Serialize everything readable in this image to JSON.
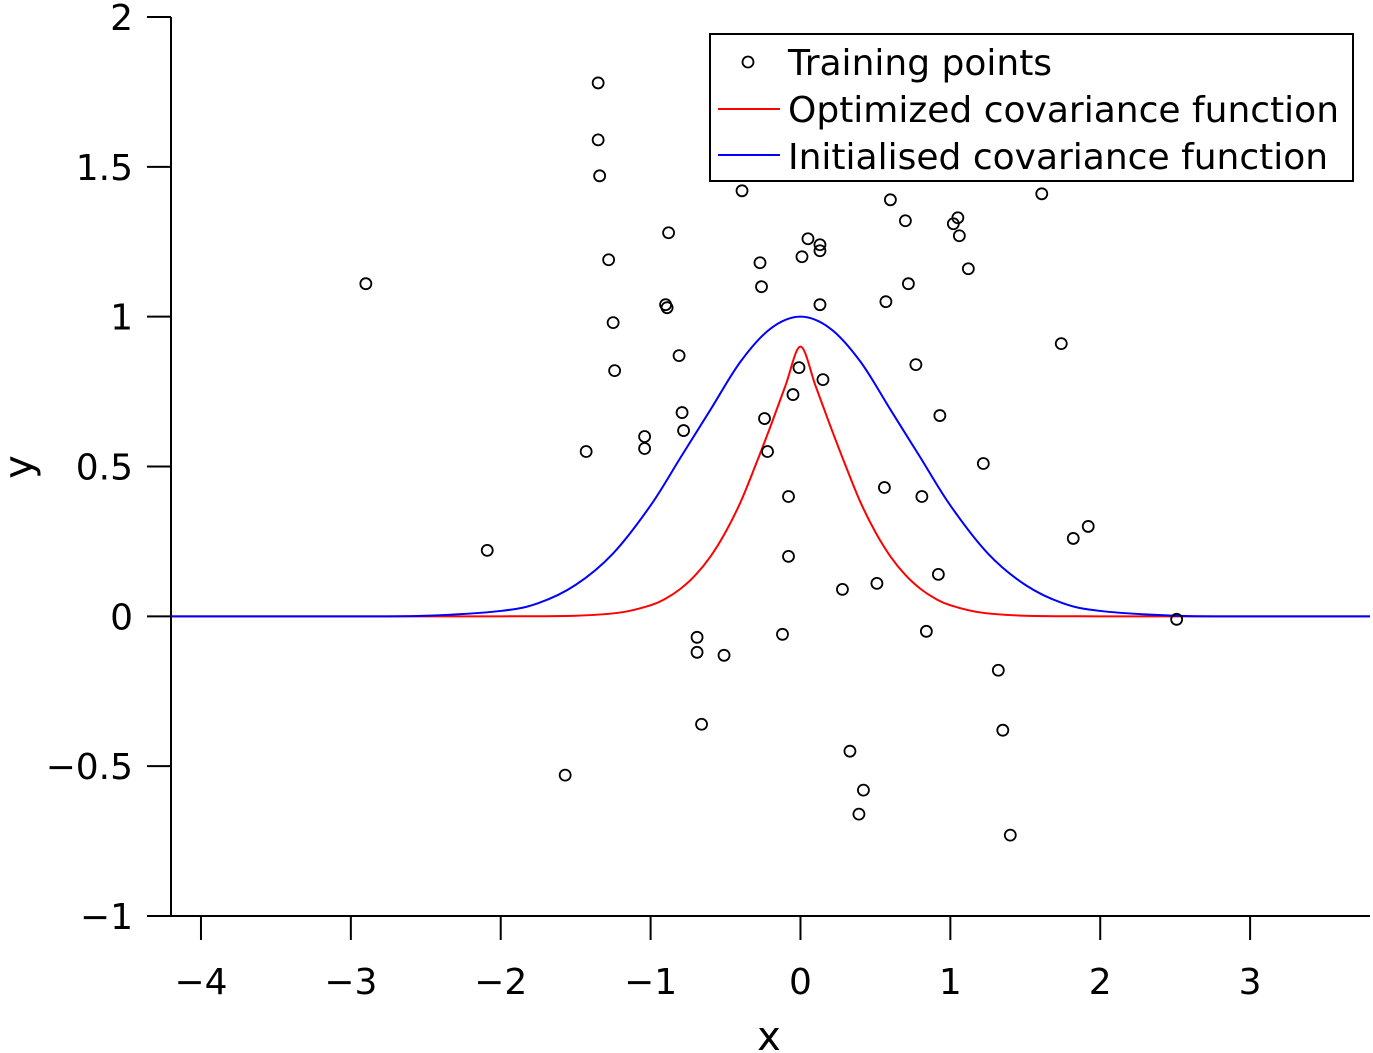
{
  "chart_data": {
    "type": "scatter",
    "title": "",
    "xlabel": "x",
    "ylabel": "y",
    "xlim": [
      -4.2,
      3.8
    ],
    "ylim": [
      -1,
      2
    ],
    "xticks": [
      -4,
      -3,
      -2,
      -1,
      0,
      1,
      2,
      3
    ],
    "xtick_labels": [
      "−4",
      "−3",
      "−2",
      "−1",
      "0",
      "1",
      "2",
      "3"
    ],
    "yticks": [
      -1,
      -0.5,
      0,
      0.5,
      1,
      1.5,
      2
    ],
    "ytick_labels": [
      "−1",
      "−0.5",
      "0",
      "0.5",
      "1",
      "1.5",
      "2"
    ],
    "grid": false,
    "legend_position": "top-right",
    "series": [
      {
        "name": "Training points",
        "kind": "scatter",
        "marker": "open-circle",
        "color": "#000000",
        "points": [
          [
            -2.9,
            1.11
          ],
          [
            -2.09,
            0.22
          ],
          [
            -1.57,
            -0.53
          ],
          [
            -1.43,
            0.55
          ],
          [
            -1.35,
            1.78
          ],
          [
            -1.35,
            1.59
          ],
          [
            -1.34,
            1.47
          ],
          [
            -1.28,
            1.19
          ],
          [
            -1.25,
            0.98
          ],
          [
            -1.24,
            0.82
          ],
          [
            -1.04,
            0.6
          ],
          [
            -1.04,
            0.56
          ],
          [
            -0.9,
            1.04
          ],
          [
            -0.89,
            1.03
          ],
          [
            -0.88,
            1.28
          ],
          [
            -0.81,
            0.87
          ],
          [
            -0.79,
            0.68
          ],
          [
            -0.78,
            0.62
          ],
          [
            -0.69,
            -0.07
          ],
          [
            -0.69,
            -0.12
          ],
          [
            -0.66,
            -0.36
          ],
          [
            -0.51,
            -0.13
          ],
          [
            -0.39,
            1.42
          ],
          [
            -0.27,
            1.18
          ],
          [
            -0.26,
            1.1
          ],
          [
            -0.24,
            0.66
          ],
          [
            -0.22,
            0.55
          ],
          [
            -0.12,
            -0.06
          ],
          [
            -0.08,
            0.4
          ],
          [
            -0.08,
            0.2
          ],
          [
            -0.05,
            0.74
          ],
          [
            -0.01,
            0.83
          ],
          [
            0.01,
            1.2
          ],
          [
            0.05,
            1.26
          ],
          [
            0.13,
            1.22
          ],
          [
            0.13,
            1.24
          ],
          [
            0.13,
            1.04
          ],
          [
            0.15,
            0.79
          ],
          [
            0.28,
            0.09
          ],
          [
            0.33,
            -0.45
          ],
          [
            0.39,
            -0.66
          ],
          [
            0.42,
            -0.58
          ],
          [
            0.51,
            0.11
          ],
          [
            0.56,
            0.43
          ],
          [
            0.57,
            1.05
          ],
          [
            0.6,
            1.39
          ],
          [
            0.7,
            1.32
          ],
          [
            0.72,
            1.11
          ],
          [
            0.77,
            0.84
          ],
          [
            0.81,
            0.4
          ],
          [
            0.84,
            -0.05
          ],
          [
            0.92,
            0.14
          ],
          [
            0.93,
            0.67
          ],
          [
            1.02,
            1.31
          ],
          [
            1.05,
            1.33
          ],
          [
            1.06,
            1.27
          ],
          [
            1.12,
            1.16
          ],
          [
            1.22,
            0.51
          ],
          [
            1.32,
            -0.18
          ],
          [
            1.35,
            -0.38
          ],
          [
            1.4,
            -0.73
          ],
          [
            1.61,
            1.41
          ],
          [
            1.74,
            0.91
          ],
          [
            1.82,
            0.26
          ],
          [
            1.92,
            0.3
          ],
          [
            2.51,
            -0.01
          ]
        ]
      },
      {
        "name": "Optimized covariance function",
        "kind": "line",
        "color": "#ff0000",
        "x": [
          -4.2,
          -3.5,
          -3.0,
          -2.5,
          -2.0,
          -1.5,
          -1.2,
          -1.0,
          -0.9,
          -0.8,
          -0.7,
          -0.6,
          -0.5,
          -0.4,
          -0.3,
          -0.2,
          -0.1,
          0.0,
          0.1,
          0.2,
          0.3,
          0.4,
          0.5,
          0.6,
          0.7,
          0.8,
          0.9,
          1.0,
          1.2,
          1.5,
          2.0,
          2.5,
          3.0,
          3.5,
          3.8
        ],
        "y": [
          0.0,
          0.0,
          0.0,
          0.0,
          0.0,
          0.002,
          0.013,
          0.037,
          0.059,
          0.092,
          0.138,
          0.2,
          0.281,
          0.381,
          0.504,
          0.634,
          0.77,
          0.9,
          0.77,
          0.634,
          0.504,
          0.381,
          0.281,
          0.2,
          0.138,
          0.092,
          0.059,
          0.037,
          0.013,
          0.002,
          0.0,
          0.0,
          0.0,
          0.0,
          0.0
        ]
      },
      {
        "name": "Initialised covariance function",
        "kind": "line",
        "color": "#0000ff",
        "x": [
          -4.2,
          -3.5,
          -3.0,
          -2.5,
          -2.0,
          -1.75,
          -1.5,
          -1.25,
          -1.0,
          -0.8,
          -0.6,
          -0.4,
          -0.2,
          0.0,
          0.2,
          0.4,
          0.6,
          0.8,
          1.0,
          1.25,
          1.5,
          1.75,
          2.0,
          2.5,
          3.0,
          3.5,
          3.8
        ],
        "y": [
          0.0,
          0.0,
          0.0,
          0.002,
          0.018,
          0.044,
          0.105,
          0.21,
          0.37,
          0.53,
          0.69,
          0.85,
          0.96,
          1.0,
          0.96,
          0.85,
          0.69,
          0.53,
          0.37,
          0.21,
          0.105,
          0.044,
          0.018,
          0.002,
          0.0,
          0.0,
          0.0
        ]
      }
    ]
  }
}
